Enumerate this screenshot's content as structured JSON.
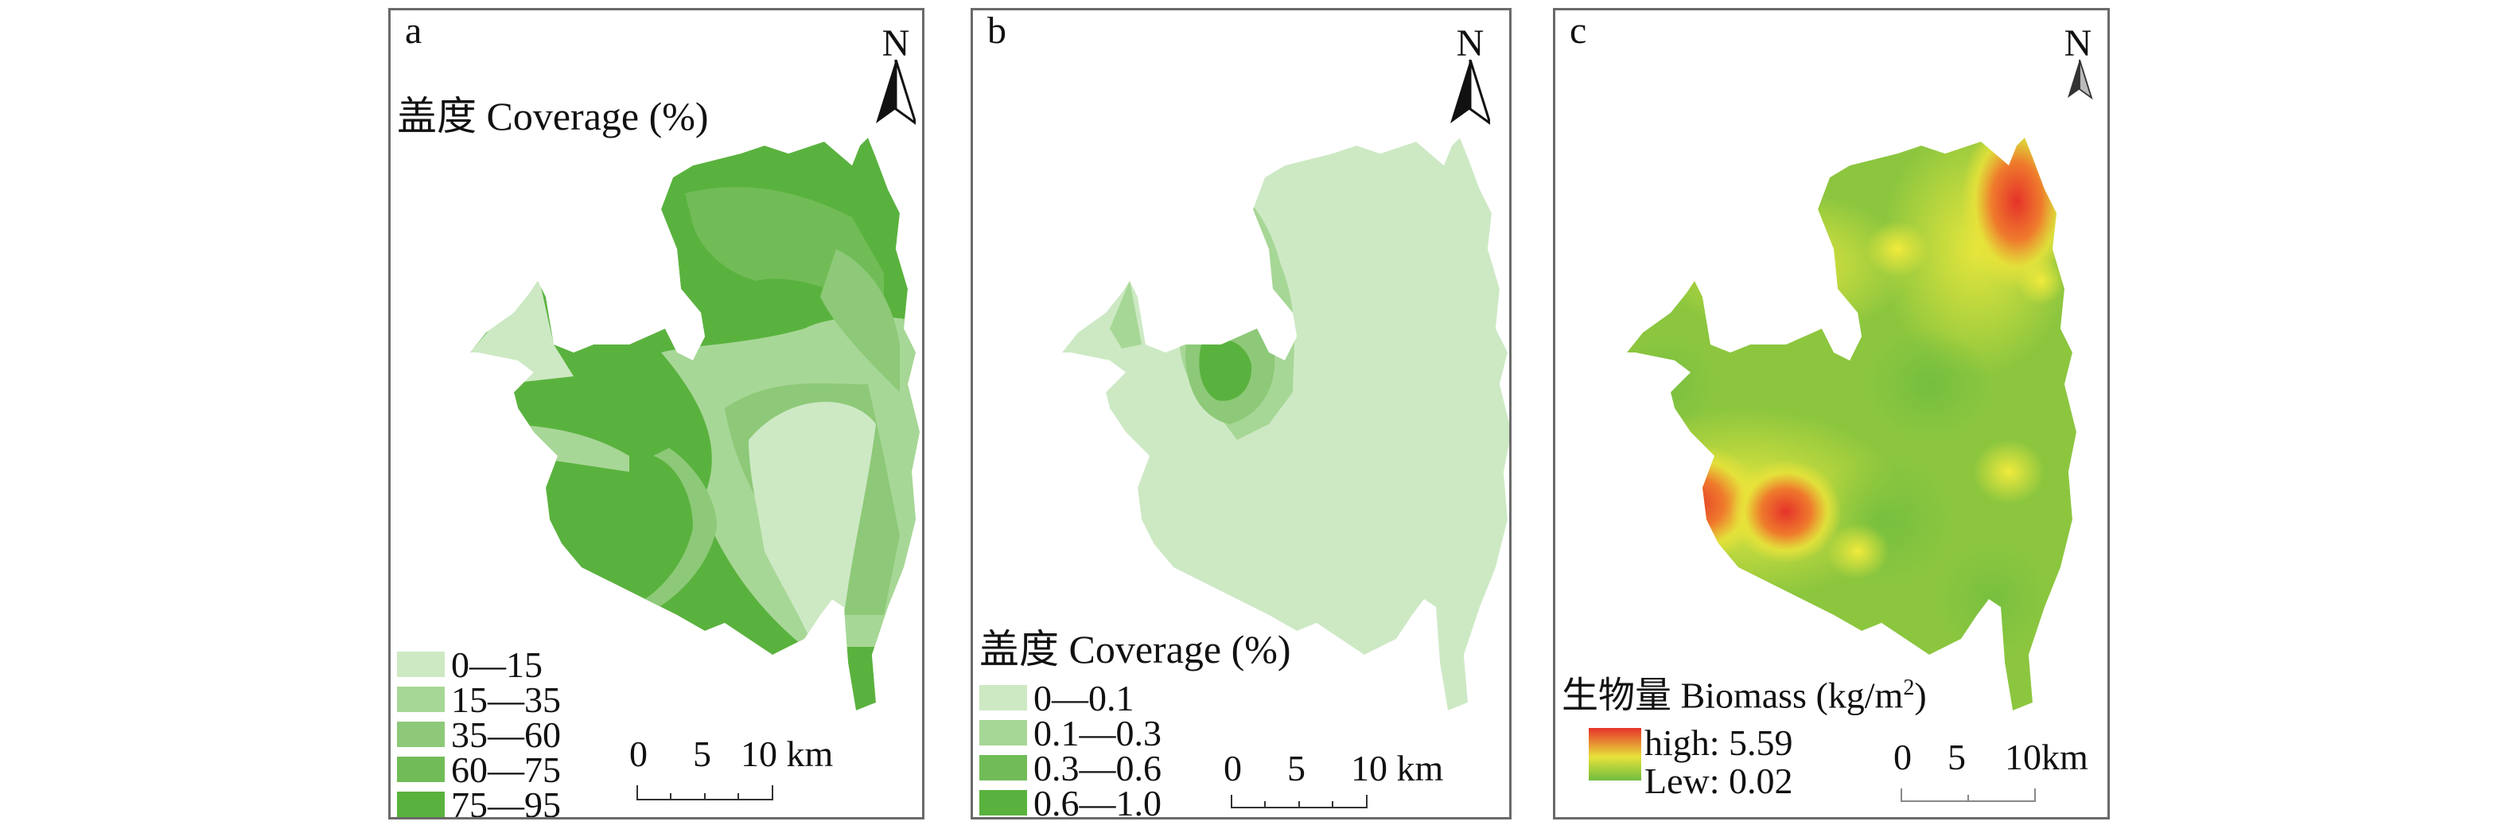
{
  "colors": {
    "c0": "#cde9c4",
    "c1": "#a7d796",
    "c2": "#8dc978",
    "c3": "#71bc57",
    "c4": "#5ab23e",
    "red": "#e5322a",
    "yellow": "#e8e23a",
    "green": "#7cc242"
  },
  "panels": [
    {
      "letter": "a",
      "north": "N",
      "title": "盖度 Coverage (%)",
      "legend": [
        {
          "label": "0—15",
          "color": "#cde9c4"
        },
        {
          "label": "15—35",
          "color": "#a7d796"
        },
        {
          "label": "35—60",
          "color": "#8dc978"
        },
        {
          "label": "60—75",
          "color": "#71bc57"
        },
        {
          "label": "75—95",
          "color": "#5ab23e"
        }
      ],
      "scale": {
        "ticks": [
          "0",
          "5",
          "10 km"
        ]
      }
    },
    {
      "letter": "b",
      "north": "N",
      "title": "盖度 Coverage (%)",
      "legend": [
        {
          "label": "0—0.1",
          "color": "#cde9c4"
        },
        {
          "label": "0.1—0.3",
          "color": "#a7d796"
        },
        {
          "label": "0.3—0.6",
          "color": "#71bc57"
        },
        {
          "label": "0.6—1.0",
          "color": "#5ab23e"
        }
      ],
      "scale": {
        "ticks": [
          "0",
          "5",
          "10 km"
        ]
      }
    },
    {
      "letter": "c",
      "north": "N",
      "title_main": "生物量 Biomass (kg/m",
      "title_sup": "2",
      "title_end": ")",
      "gradient": {
        "high": "high: 5.59",
        "low": "Lew: 0.02"
      },
      "scale": {
        "ticks": [
          "0",
          "5",
          "10km"
        ]
      }
    }
  ]
}
